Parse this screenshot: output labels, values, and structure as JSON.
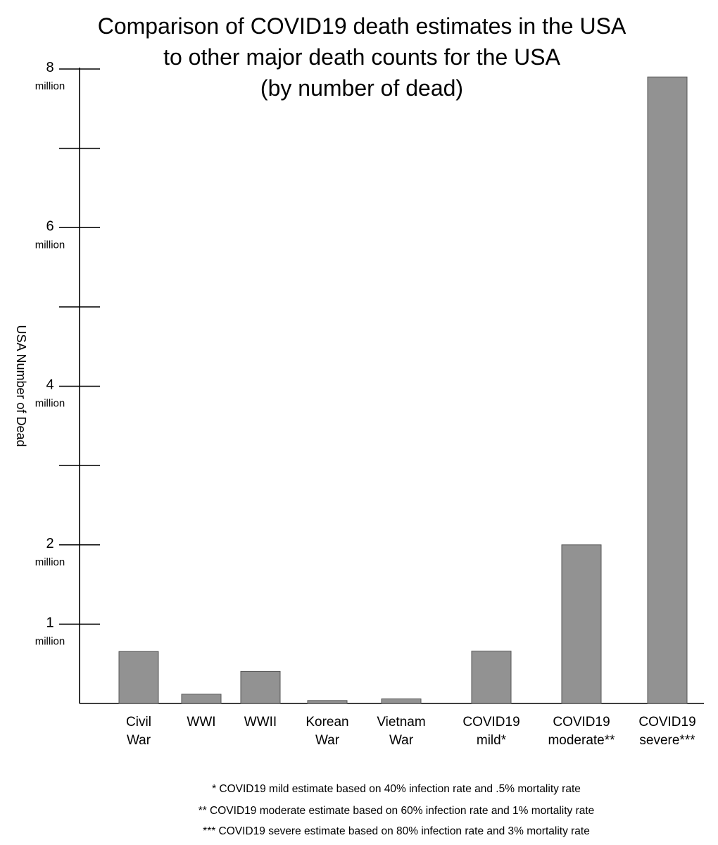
{
  "chart_data": {
    "type": "bar",
    "title_lines": [
      "Comparison of COVID19 death estimates in the USA",
      "to other major death counts for the USA",
      "(by number of dead)"
    ],
    "ylabel": "USA Number of Dead",
    "xlabel": "",
    "ylim": [
      0,
      8000000
    ],
    "grid": false,
    "y_ticks": [
      {
        "value": 1000000,
        "label": "1",
        "sublabel": "million"
      },
      {
        "value": 2000000,
        "label": "2",
        "sublabel": "million"
      },
      {
        "value": 3000000,
        "label": "",
        "sublabel": ""
      },
      {
        "value": 4000000,
        "label": "4",
        "sublabel": "million"
      },
      {
        "value": 5000000,
        "label": "",
        "sublabel": ""
      },
      {
        "value": 6000000,
        "label": "6",
        "sublabel": "million"
      },
      {
        "value": 7000000,
        "label": "",
        "sublabel": ""
      },
      {
        "value": 8000000,
        "label": "8",
        "sublabel": "million"
      }
    ],
    "categories": [
      {
        "name": "civil-war",
        "lines": [
          "Civil",
          "War"
        ]
      },
      {
        "name": "wwi",
        "lines": [
          "WWI"
        ]
      },
      {
        "name": "wwii",
        "lines": [
          "WWII"
        ]
      },
      {
        "name": "korean-war",
        "lines": [
          "Korean",
          "War"
        ]
      },
      {
        "name": "vietnam-war",
        "lines": [
          "Vietnam",
          "War"
        ]
      },
      {
        "name": "covid19-mild",
        "lines": [
          "COVID19",
          "mild*"
        ]
      },
      {
        "name": "covid19-moderate",
        "lines": [
          "COVID19",
          "moderate**"
        ]
      },
      {
        "name": "covid19-severe",
        "lines": [
          "COVID19",
          "severe***"
        ]
      }
    ],
    "values": [
      655000,
      117000,
      405000,
      37000,
      58000,
      660000,
      2000000,
      7900000
    ],
    "bar_color": "#929292",
    "bar_edge_color": "#555555",
    "footnotes": [
      "* COVID19 mild estimate based on 40% infection rate and .5% mortality rate",
      "** COVID19 moderate estimate based on 60% infection rate and 1% mortality rate",
      "*** COVID19 severe estimate based on 80% infection rate and 3% mortality rate"
    ]
  }
}
